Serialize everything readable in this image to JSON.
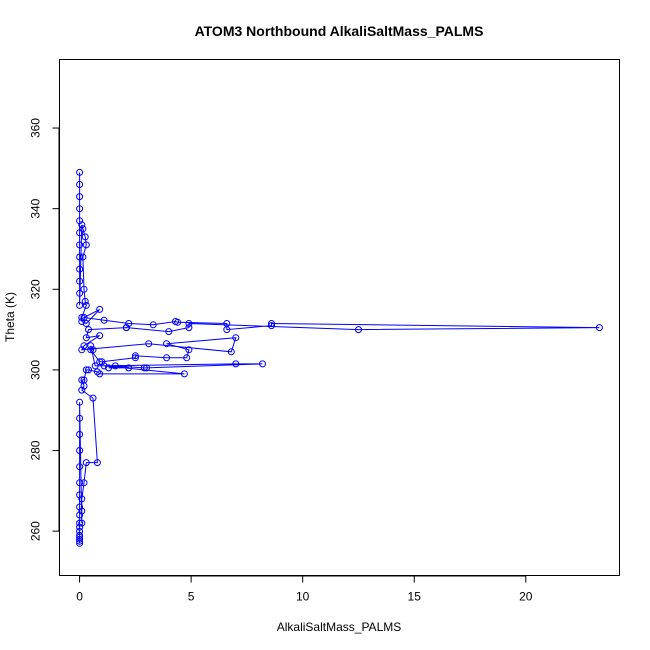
{
  "chart_data": {
    "type": "scatter",
    "title": "ATOM3 Northbound AlkaliSaltMass_PALMS",
    "xlabel": "AlkaliSaltMass_PALMS",
    "ylabel": "Theta (K)",
    "xlim": [
      -0.9,
      24.2
    ],
    "ylim": [
      249,
      377
    ],
    "xticks": [
      0,
      5,
      10,
      15,
      20
    ],
    "yticks": [
      260,
      280,
      300,
      320,
      340,
      360
    ],
    "grid": false,
    "legend": "none",
    "color": "#0000ff",
    "series": [
      {
        "x": [
          0,
          0,
          0,
          0,
          0,
          0,
          0,
          0,
          0,
          0,
          0,
          0,
          0.1,
          0.15,
          0.25,
          0.3,
          0.15,
          0.2,
          0.25,
          0.3,
          0.1,
          0.1,
          0.3,
          0.9,
          0.2,
          1.1,
          2.2,
          3.3,
          4.3,
          4.4,
          6.6,
          6.6,
          8.6,
          8.6,
          23.3,
          12.5,
          4.9,
          4.9,
          4.0,
          2.1,
          2.1,
          0.4,
          0.3,
          0.9,
          0.2,
          0.1,
          3.1,
          6.8,
          7.0,
          3.9,
          4.9,
          4.8,
          3.9,
          2.5,
          2.5,
          1.0,
          0.9,
          0.5,
          0.6,
          0.5,
          0.7,
          7.0,
          8.2,
          3.0,
          2.9,
          1.6,
          1.3,
          2.2,
          1.1,
          4.7,
          0.9,
          0.8,
          0.4,
          0.3,
          0.2,
          0.1,
          0.2,
          0.1,
          0.6,
          0.8,
          0.3,
          0.2,
          0.1,
          0.1,
          0.1,
          0,
          0,
          0,
          0,
          0,
          0,
          0,
          0,
          0,
          0,
          0,
          0,
          0,
          0,
          0,
          0,
          0
        ],
        "y": [
          349,
          346,
          343,
          340,
          337,
          334,
          331,
          328,
          325,
          322,
          319,
          316,
          336,
          335,
          333,
          331,
          328,
          320,
          317,
          316,
          313,
          312,
          311.5,
          315,
          313,
          312.3,
          311.5,
          311.2,
          312,
          311.8,
          311.5,
          310,
          311,
          311.5,
          310.5,
          310,
          311.5,
          310.5,
          309.5,
          310.5,
          310.5,
          310,
          308,
          308.5,
          306,
          305,
          306.5,
          304.5,
          308,
          306.5,
          305,
          303,
          303,
          303.5,
          303,
          302,
          302,
          305,
          305,
          306,
          301,
          301.5,
          301.5,
          300.5,
          300.5,
          301,
          300.5,
          300.5,
          301,
          299,
          299,
          299.5,
          300,
          300,
          297.5,
          297.5,
          296,
          295,
          293,
          277,
          277,
          272,
          268,
          265,
          262,
          292,
          288,
          284,
          280,
          276,
          272,
          269,
          266,
          264,
          262,
          261,
          260,
          259,
          258.5,
          258,
          257.5,
          257
        ]
      }
    ]
  }
}
